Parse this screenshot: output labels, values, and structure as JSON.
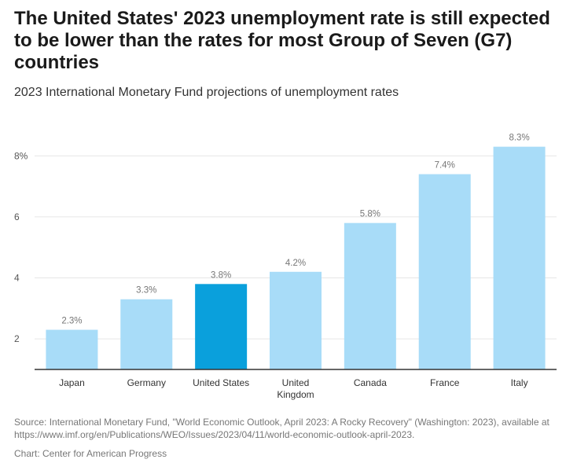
{
  "title": "The United States' 2023 unemployment rate is still expected to be lower than the rates for most Group of Seven (G7) countries",
  "subtitle": "2023 International Monetary Fund projections of unemployment rates",
  "source": "Source: International Monetary Fund, \"World Economic Outlook, April 2023: A Rocky Recovery\" (Washington: 2023), available at https://www.imf.org/en/Publications/WEO/Issues/2023/04/11/world-economic-outlook-april-2023.",
  "credit": "Chart: Center for American Progress",
  "colors": {
    "bar": "#a8dcf8",
    "highlight": "#0aa0dc",
    "grid": "#e6e6e6",
    "axis": "#333333"
  },
  "chart_data": {
    "type": "bar",
    "title": "2023 International Monetary Fund projections of unemployment rates",
    "xlabel": "",
    "ylabel": "",
    "categories": [
      [
        "Japan"
      ],
      [
        "Germany"
      ],
      [
        "United States"
      ],
      [
        "United",
        "Kingdom"
      ],
      [
        "Canada"
      ],
      [
        "France"
      ],
      [
        "Italy"
      ]
    ],
    "values": [
      2.3,
      3.3,
      3.8,
      4.2,
      5.8,
      7.4,
      8.3
    ],
    "value_labels": [
      "2.3%",
      "3.3%",
      "3.8%",
      "4.2%",
      "5.8%",
      "7.4%",
      "8.3%"
    ],
    "highlight_index": 2,
    "ylim": [
      1,
      8.6
    ],
    "yticks": [
      2,
      4,
      6,
      8
    ],
    "ytick_labels": [
      "2",
      "4",
      "6",
      "8%"
    ],
    "grid": true
  }
}
